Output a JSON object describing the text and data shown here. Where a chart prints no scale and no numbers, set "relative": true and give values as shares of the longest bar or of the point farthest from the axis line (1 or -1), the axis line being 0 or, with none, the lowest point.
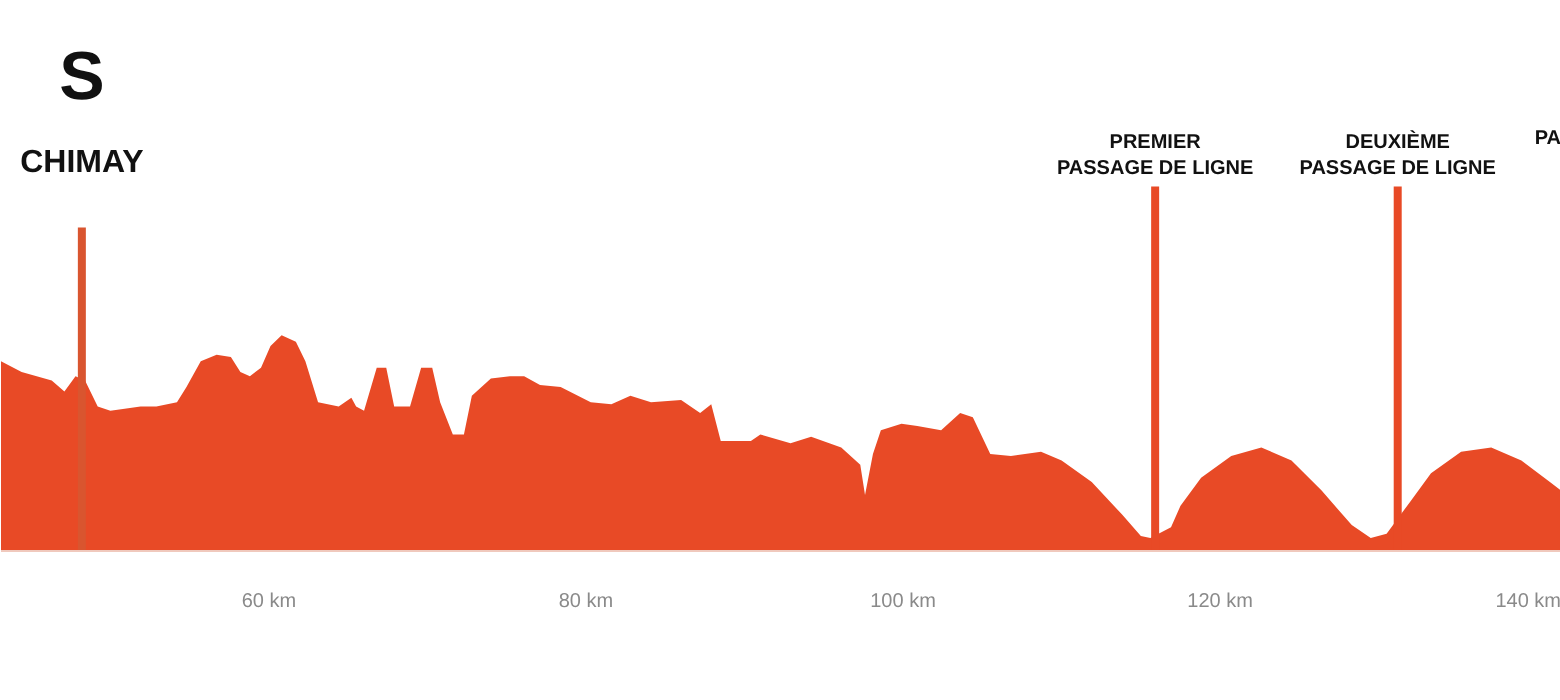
{
  "chart_data": {
    "type": "area",
    "relative": true,
    "color": "#e84a26",
    "x": [
      43.1,
      44.4,
      46.3,
      47.1,
      47.8,
      48.4,
      49.2,
      50.0,
      50.9,
      51.9,
      52.9,
      54.2,
      54.8,
      55.7,
      56.7,
      57.6,
      58.2,
      58.8,
      59.5,
      60.1,
      60.8,
      61.7,
      62.3,
      63.1,
      64.4,
      65.2,
      65.5,
      66.0,
      66.8,
      67.4,
      67.9,
      68.9,
      69.6,
      70.3,
      70.8,
      71.6,
      72.3,
      72.8,
      74.0,
      75.2,
      76.1,
      77.1,
      78.4,
      80.3,
      81.6,
      82.8,
      84.1,
      86.0,
      87.2,
      87.9,
      88.5,
      90.4,
      91.0,
      92.9,
      94.2,
      96.1,
      97.3,
      97.6,
      98.1,
      98.6,
      99.9,
      100.9,
      102.4,
      103.6,
      104.4,
      105.5,
      106.8,
      108.7,
      110.0,
      111.9,
      113.8,
      115.0,
      115.6,
      116.9,
      117.5,
      118.8,
      120.7,
      122.6,
      124.5,
      126.4,
      128.3,
      129.5,
      130.5,
      132.0,
      133.3,
      135.2,
      137.1,
      139.0,
      140.8,
      141.5
    ],
    "values": [
      0.88,
      0.83,
      0.79,
      0.74,
      0.81,
      0.79,
      0.67,
      0.65,
      0.66,
      0.67,
      0.67,
      0.69,
      0.76,
      0.88,
      0.91,
      0.9,
      0.83,
      0.81,
      0.85,
      0.95,
      1.0,
      0.97,
      0.88,
      0.69,
      0.67,
      0.71,
      0.67,
      0.65,
      0.85,
      0.85,
      0.67,
      0.67,
      0.85,
      0.85,
      0.69,
      0.54,
      0.54,
      0.72,
      0.8,
      0.81,
      0.81,
      0.77,
      0.76,
      0.69,
      0.68,
      0.72,
      0.69,
      0.7,
      0.64,
      0.68,
      0.51,
      0.51,
      0.54,
      0.5,
      0.53,
      0.48,
      0.4,
      0.26,
      0.45,
      0.56,
      0.59,
      0.58,
      0.56,
      0.64,
      0.62,
      0.45,
      0.44,
      0.46,
      0.42,
      0.32,
      0.17,
      0.07,
      0.06,
      0.11,
      0.21,
      0.34,
      0.44,
      0.48,
      0.42,
      0.28,
      0.12,
      0.06,
      0.08,
      0.23,
      0.36,
      0.46,
      0.48,
      0.42,
      0.32,
      0.28
    ],
    "xlim": [
      43.1,
      141.5
    ],
    "xticks": [
      {
        "value": 60,
        "label": "60 km"
      },
      {
        "value": 80,
        "label": "80 km"
      },
      {
        "value": 100,
        "label": "100 km"
      },
      {
        "value": 120,
        "label": "120 km"
      },
      {
        "value": 140,
        "label": "140 km"
      }
    ],
    "ref_lines": [
      {
        "axis": "x",
        "value": 48.2,
        "label": "CHIMAY",
        "color": "#d9552f"
      },
      {
        "axis": "x",
        "value": 115.9,
        "label": "PREMIER\nPASSAGE DE LIGNE",
        "color": "#e84a26"
      },
      {
        "axis": "x",
        "value": 131.2,
        "label": "DEUXIÈME\nPASSAGE DE LIGNE",
        "color": "#e84a26"
      }
    ],
    "annotations": [
      "S",
      "PA"
    ]
  }
}
